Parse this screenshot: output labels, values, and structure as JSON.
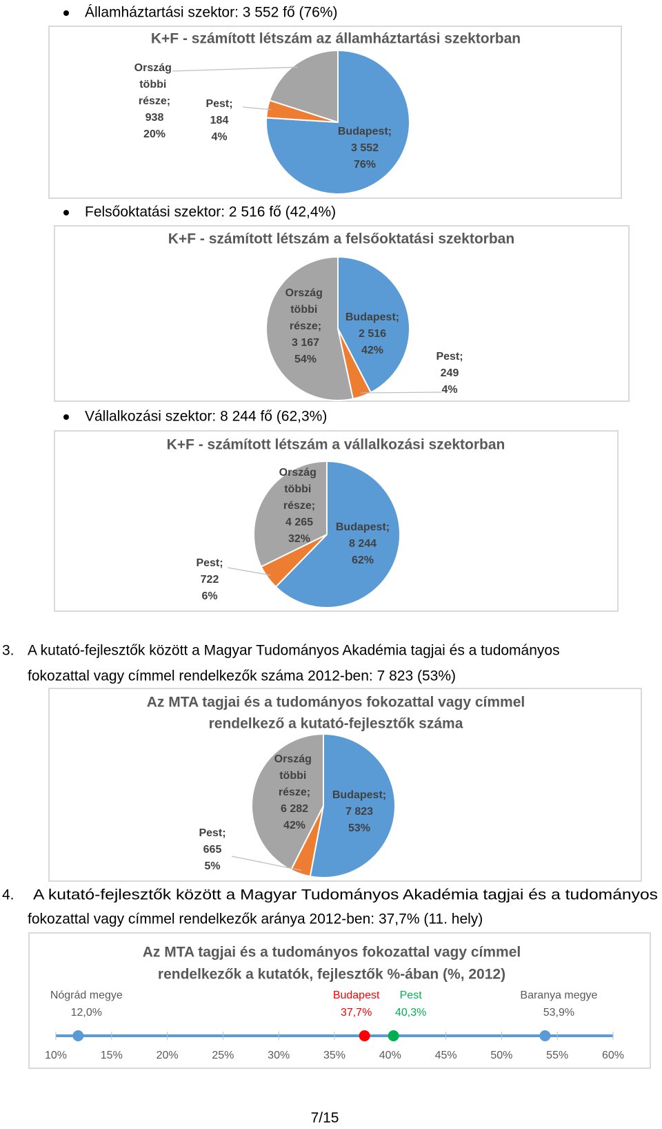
{
  "document": {
    "bullets": [
      "Államháztartási szektor: 3 552 fő (76%)",
      "Felsőoktatási szektor: 2 516 fő (42,4%)",
      "Vállalkozási szektor: 8 244 fő (62,3%)"
    ],
    "paragraphs": [
      {
        "number": "3.",
        "lines": [
          "A kutató-fejlesztők között a Magyar Tudományos Akadémia tagjai és a tudományos",
          "fokozattal vagy címmel rendelkezők száma 2012-ben: 7 823 (53%)"
        ]
      },
      {
        "number": "4.",
        "lines": [
          "A kutató-fejlesztők között a Magyar Tudományos Akadémia tagjai és a tudományos",
          "fokozattal vagy címmel rendelkezők aránya 2012-ben: 37,7% (11. hely)"
        ]
      }
    ],
    "page_number": "7/15"
  },
  "chart_data": [
    {
      "type": "pie",
      "title": [
        "K+F - számított létszám az államháztartási szektorban"
      ],
      "categories": [
        "Budapest;",
        "Pest;",
        "Ország többi része;"
      ],
      "values": [
        3552,
        184,
        938
      ],
      "value_labels": [
        "3 552",
        "184",
        "938"
      ],
      "percents": [
        76,
        4,
        20
      ],
      "percent_labels": [
        "76%",
        "4%",
        "20%"
      ],
      "colors": [
        "#5b9bd5",
        "#ed7d31",
        "#a5a5a5"
      ]
    },
    {
      "type": "pie",
      "title": [
        "K+F - számított létszám a felsőoktatási szektorban"
      ],
      "categories": [
        "Budapest;",
        "Pest;",
        "Ország többi része;"
      ],
      "values": [
        2516,
        249,
        3167
      ],
      "value_labels": [
        "2 516",
        "249",
        "3 167"
      ],
      "percents": [
        42,
        4,
        54
      ],
      "percent_labels": [
        "42%",
        "4%",
        "54%"
      ],
      "colors": [
        "#5b9bd5",
        "#ed7d31",
        "#a5a5a5"
      ]
    },
    {
      "type": "pie",
      "title": [
        "K+F - számított létszám a vállalkozási szektorban"
      ],
      "categories": [
        "Budapest;",
        "Pest;",
        "Ország többi része;"
      ],
      "values": [
        8244,
        722,
        4265
      ],
      "value_labels": [
        "8 244",
        "722",
        "4 265"
      ],
      "percents": [
        62,
        6,
        32
      ],
      "percent_labels": [
        "62%",
        "6%",
        "32%"
      ],
      "colors": [
        "#5b9bd5",
        "#ed7d31",
        "#a5a5a5"
      ]
    },
    {
      "type": "pie",
      "title": [
        "Az MTA tagjai és a tudományos fokozattal vagy címmel",
        "rendelkező a kutató-fejlesztők száma"
      ],
      "categories": [
        "Budapest;",
        "Pest;",
        "Ország többi része;"
      ],
      "values": [
        7823,
        665,
        6282
      ],
      "value_labels": [
        "7 823",
        "665",
        "6 282"
      ],
      "percents": [
        53,
        5,
        42
      ],
      "percent_labels": [
        "53%",
        "5%",
        "42%"
      ],
      "colors": [
        "#5b9bd5",
        "#ed7d31",
        "#a5a5a5"
      ]
    },
    {
      "type": "dotplot",
      "title": [
        "Az MTA tagjai és a tudományos fokozattal vagy címmel",
        "rendelkezők a kutatók, fejlesztők %-ában (%, 2012)"
      ],
      "categories": [
        "Nógrád megye",
        "Budapest",
        "Pest",
        "Baranya megye"
      ],
      "values": [
        12.0,
        37.7,
        40.3,
        53.9
      ],
      "value_labels": [
        "12,0%",
        "37,7%",
        "40,3%",
        "53,9%"
      ],
      "colors": [
        "#5b9bd5",
        "#ff0000",
        "#00b050",
        "#5b9bd5"
      ],
      "label_colors": [
        "#595959",
        "#ff0000",
        "#00b050",
        "#595959"
      ],
      "line_color": "#5b9bd5",
      "xlim": [
        10,
        60
      ],
      "xticks": [
        {
          "value": 10,
          "label": "10%"
        },
        {
          "value": 15,
          "label": "15%"
        },
        {
          "value": 20,
          "label": "20%"
        },
        {
          "value": 25,
          "label": "25%"
        },
        {
          "value": 30,
          "label": "30%"
        },
        {
          "value": 35,
          "label": "35%"
        },
        {
          "value": 40,
          "label": "40%"
        },
        {
          "value": 45,
          "label": "45%"
        },
        {
          "value": 50,
          "label": "50%"
        },
        {
          "value": 55,
          "label": "55%"
        },
        {
          "value": 60,
          "label": "60%"
        }
      ]
    }
  ]
}
